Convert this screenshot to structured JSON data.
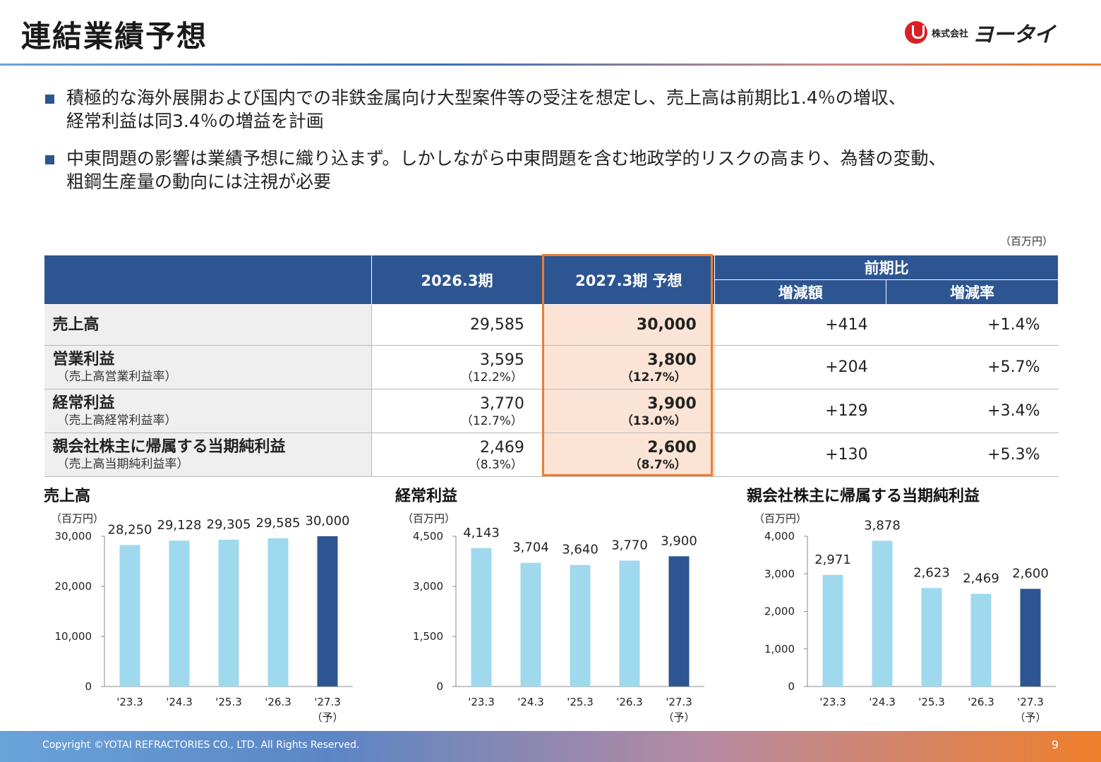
{
  "header": {
    "title": "連結業績予想",
    "logo_sub": "株式会社",
    "logo_name": "ヨータイ"
  },
  "bullets": [
    {
      "line1": "積極的な海外展開および国内での非鉄金属向け大型案件等の受注を想定し、売上高は前期比1.4％の増収、",
      "line2": "経常利益は同3.4％の増益を計画"
    },
    {
      "line1": "中東問題の影響は業績予想に織り込まず。しかしながら中東問題を含む地政学的リスクの高まり、為替の変動、",
      "line2": "粗鋼生産量の動向には注視が必要"
    }
  ],
  "table": {
    "unit": "（百万円）",
    "headers": {
      "col_2026": "2026.3期",
      "col_2027": "2027.3期 予想",
      "col_yoy": "前期比",
      "col_diff": "増減額",
      "col_rate": "増減率"
    },
    "rows": [
      {
        "label": "売上高",
        "sublabel": "",
        "v2026": "29,585",
        "v2026_sub": "",
        "v2027": "30,000",
        "v2027_sub": "",
        "diff": "+414",
        "rate": "+1.4%"
      },
      {
        "label": "営業利益",
        "sublabel": "（売上高営業利益率）",
        "v2026": "3,595",
        "v2026_sub": "（12.2%）",
        "v2027": "3,800",
        "v2027_sub": "（12.7%）",
        "diff": "+204",
        "rate": "+5.7%"
      },
      {
        "label": "経常利益",
        "sublabel": "（売上高経常利益率）",
        "v2026": "3,770",
        "v2026_sub": "（12.7%）",
        "v2027": "3,900",
        "v2027_sub": "（13.0%）",
        "diff": "+129",
        "rate": "+3.4%"
      },
      {
        "label": "親会社株主に帰属する当期純利益",
        "sublabel": "（売上高当期純利益率）",
        "v2026": "2,469",
        "v2026_sub": "（8.3%）",
        "v2027": "2,600",
        "v2027_sub": "（8.7%）",
        "diff": "+130",
        "rate": "+5.3%"
      }
    ]
  },
  "colors": {
    "header_blue": "#2d5591",
    "bar_light": "#9fd9ee",
    "bar_dark": "#2d5591",
    "forecast_fill": "#fbe4d6",
    "forecast_border": "#ed7d31"
  },
  "chart_data": [
    {
      "type": "bar",
      "title": "売上高",
      "ylabel": "（百万円）",
      "categories": [
        "'23.3",
        "'24.3",
        "'25.3",
        "'26.3",
        "'27.3"
      ],
      "category_sub": [
        "",
        "",
        "",
        "",
        "（予）"
      ],
      "values": [
        28250,
        29128,
        29305,
        29585,
        30000
      ],
      "value_labels": [
        "28,250",
        "29,128",
        "29,305",
        "29,585",
        "30,000"
      ],
      "ylim": [
        0,
        30000
      ],
      "yticks": [
        0,
        10000,
        20000,
        30000
      ],
      "ytick_labels": [
        "0",
        "10,000",
        "20,000",
        "30,000"
      ],
      "highlight_index": 4
    },
    {
      "type": "bar",
      "title": "経常利益",
      "ylabel": "（百万円）",
      "categories": [
        "'23.3",
        "'24.3",
        "'25.3",
        "'26.3",
        "'27.3"
      ],
      "category_sub": [
        "",
        "",
        "",
        "",
        "（予）"
      ],
      "values": [
        4143,
        3704,
        3640,
        3770,
        3900
      ],
      "value_labels": [
        "4,143",
        "3,704",
        "3,640",
        "3,770",
        "3,900"
      ],
      "ylim": [
        0,
        4500
      ],
      "yticks": [
        0,
        1500,
        3000,
        4500
      ],
      "ytick_labels": [
        "0",
        "1,500",
        "3,000",
        "4,500"
      ],
      "highlight_index": 4
    },
    {
      "type": "bar",
      "title": "親会社株主に帰属する当期純利益",
      "ylabel": "（百万円）",
      "categories": [
        "'23.3",
        "'24.3",
        "'25.3",
        "'26.3",
        "'27.3"
      ],
      "category_sub": [
        "",
        "",
        "",
        "",
        "（予）"
      ],
      "values": [
        2971,
        3878,
        2623,
        2469,
        2600
      ],
      "value_labels": [
        "2,971",
        "3,878",
        "2,623",
        "2,469",
        "2,600"
      ],
      "ylim": [
        0,
        4000
      ],
      "yticks": [
        0,
        1000,
        2000,
        3000,
        4000
      ],
      "ytick_labels": [
        "0",
        "1,000",
        "2,000",
        "3,000",
        "4,000"
      ],
      "highlight_index": 4
    }
  ],
  "footer": {
    "copyright": "Copyright ©YOTAI REFRACTORIES CO., LTD. All Rights Reserved.",
    "page": "9"
  }
}
